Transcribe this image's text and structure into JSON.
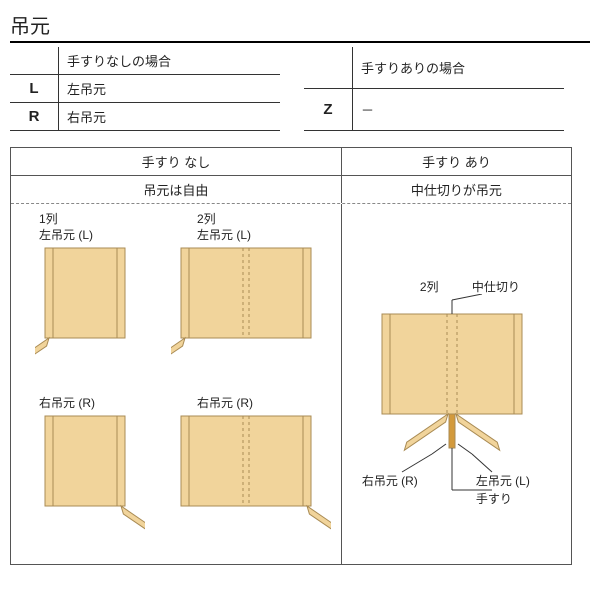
{
  "title": "吊元",
  "tables": {
    "left": {
      "header": "手すりなしの場合",
      "rows": [
        {
          "code": "L",
          "desc": "左吊元"
        },
        {
          "code": "R",
          "desc": "右吊元"
        }
      ]
    },
    "right": {
      "header": "手すりありの場合",
      "rows": [
        {
          "code": "Z",
          "desc": "－"
        }
      ]
    }
  },
  "diagram": {
    "head_left": "手すり なし",
    "head_right": "手すり あり",
    "sub_left": "吊元は自由",
    "sub_right": "中仕切りが吊元",
    "labels": {
      "p1": "1列\n左吊元 (L)",
      "p2": "2列\n左吊元 (L)",
      "p3": "右吊元 (R)",
      "p4": "右吊元 (R)",
      "r_col": "2列",
      "r_divider": "中仕切り",
      "r_right": "右吊元 (R)",
      "r_left": "左吊元 (L)",
      "r_hand": "手すり"
    }
  },
  "style": {
    "panel_fill": "#f1d49b",
    "panel_stroke": "#a98b54",
    "line_stroke": "#333333",
    "dash": "3,3",
    "handrail_fill": "#d39a3c"
  }
}
